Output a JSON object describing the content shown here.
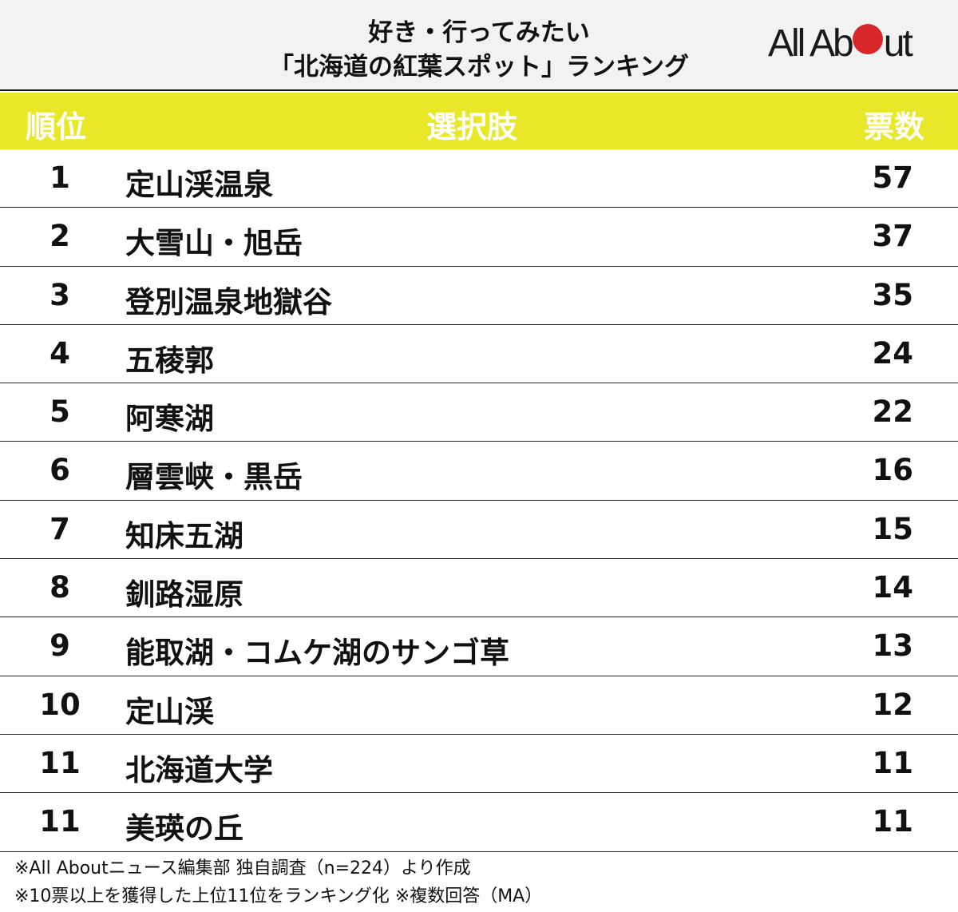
{
  "title": {
    "line1": "好き・行ってみたい",
    "line2": "「北海道の紅葉スポット」ランキング"
  },
  "logo": {
    "left": "All Ab",
    "right": "ut",
    "dot_color": "#d9262b"
  },
  "header": {
    "rank": "順位",
    "choice": "選択肢",
    "votes": "票数",
    "bg_color": "#e8e828"
  },
  "rows": [
    {
      "rank": "1",
      "name": "定山渓温泉",
      "votes": "57"
    },
    {
      "rank": "2",
      "name": "大雪山・旭岳",
      "votes": "37"
    },
    {
      "rank": "3",
      "name": "登別温泉地獄谷",
      "votes": "35"
    },
    {
      "rank": "4",
      "name": "五稜郭",
      "votes": "24"
    },
    {
      "rank": "5",
      "name": "阿寒湖",
      "votes": "22"
    },
    {
      "rank": "6",
      "name": "層雲峡・黒岳",
      "votes": "16"
    },
    {
      "rank": "7",
      "name": "知床五湖",
      "votes": "15"
    },
    {
      "rank": "8",
      "name": "釧路湿原",
      "votes": "14"
    },
    {
      "rank": "9",
      "name": "能取湖・コムケ湖のサンゴ草",
      "votes": "13"
    },
    {
      "rank": "10",
      "name": "定山渓",
      "votes": "12"
    },
    {
      "rank": "11",
      "name": "北海道大学",
      "votes": "11"
    },
    {
      "rank": "11",
      "name": "美瑛の丘",
      "votes": "11"
    }
  ],
  "footer": {
    "line1": "※All Aboutニュース編集部 独自調査（n=224）より作成",
    "line2": "※10票以上を獲得した上位11位をランキング化 ※複数回答（MA）"
  },
  "chart_data": {
    "type": "table",
    "title": "好き・行ってみたい「北海道の紅葉スポット」ランキング",
    "columns": [
      "順位",
      "選択肢",
      "票数"
    ],
    "categories": [
      "定山渓温泉",
      "大雪山・旭岳",
      "登別温泉地獄谷",
      "五稜郭",
      "阿寒湖",
      "層雲峡・黒岳",
      "知床五湖",
      "釧路湿原",
      "能取湖・コムケ湖のサンゴ草",
      "定山渓",
      "北海道大学",
      "美瑛の丘"
    ],
    "ranks": [
      1,
      2,
      3,
      4,
      5,
      6,
      7,
      8,
      9,
      10,
      11,
      11
    ],
    "values": [
      57,
      37,
      35,
      24,
      22,
      16,
      15,
      14,
      13,
      12,
      11,
      11
    ],
    "notes": [
      "※All Aboutニュース編集部 独自調査（n=224）より作成",
      "※10票以上を獲得した上位11位をランキング化 ※複数回答（MA）"
    ]
  }
}
